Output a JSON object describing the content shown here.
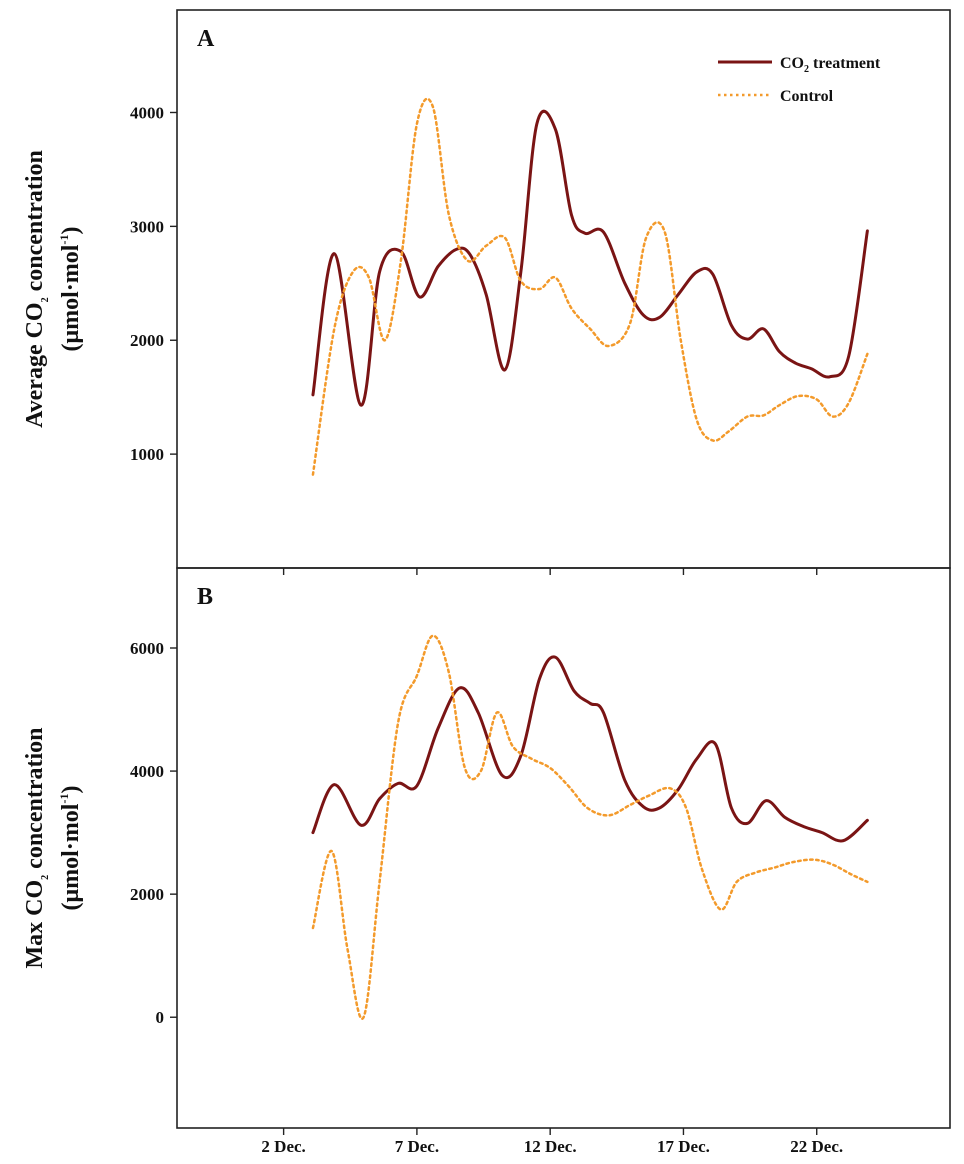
{
  "chart_data": {
    "type": "line",
    "x_tick_labels": [
      "2 Dec.",
      "7 Dec.",
      "12 Dec.",
      "17 Dec.",
      "22 Dec."
    ],
    "x_ticks": [
      2,
      7,
      12,
      17,
      22
    ],
    "x_range": [
      -2,
      27
    ],
    "legend": {
      "position": "top-right",
      "entries": [
        {
          "name": "CO",
          "sub": "2",
          "suffix": " treatment",
          "color": "#7a1414",
          "style": "solid"
        },
        {
          "name": "Control",
          "color": "#f39a2b",
          "style": "dotted"
        }
      ]
    },
    "panels": [
      {
        "label": "A",
        "ylabel": [
          "Average CO",
          "2",
          " concentration",
          "(μmol·mol",
          "-1",
          ")"
        ],
        "ylim": [
          0,
          4900
        ],
        "y_ticks": [
          1000,
          2000,
          3000,
          4000
        ],
        "y_tick_labels": [
          "1000",
          "2000",
          "3000",
          "4000"
        ],
        "series": [
          {
            "name": "CO2 treatment",
            "x": [
              3.1,
              3.9,
              4.9,
              5.6,
              6.4,
              7.1,
              7.8,
              8.5,
              9.0,
              9.6,
              10.3,
              10.9,
              11.5,
              12.2,
              12.8,
              13.3,
              14.0,
              14.8,
              15.5,
              16.1,
              16.8,
              17.5,
              18.1,
              18.8,
              19.4,
              20.0,
              20.6,
              21.2,
              21.8,
              22.5,
              23.2,
              23.9
            ],
            "y": [
              1520,
              2760,
              1430,
              2600,
              2780,
              2380,
              2650,
              2800,
              2750,
              2400,
              1740,
              2600,
              3900,
              3850,
              3100,
              2940,
              2950,
              2500,
              2220,
              2200,
              2400,
              2600,
              2580,
              2130,
              2010,
              2100,
              1900,
              1800,
              1750,
              1680,
              1860,
              2960
            ]
          },
          {
            "name": "Control",
            "x": [
              3.1,
              3.9,
              4.6,
              5.2,
              5.8,
              6.4,
              7.0,
              7.6,
              8.2,
              8.9,
              9.6,
              10.3,
              10.9,
              11.6,
              12.2,
              12.8,
              13.5,
              14.2,
              15.0,
              15.6,
              16.3,
              16.9,
              17.5,
              18.1,
              18.7,
              19.4,
              20.0,
              20.6,
              21.3,
              22.0,
              22.6,
              23.2,
              23.9
            ],
            "y": [
              820,
              2100,
              2600,
              2550,
              2000,
              2700,
              3900,
              4050,
              3100,
              2700,
              2830,
              2900,
              2520,
              2450,
              2550,
              2280,
              2100,
              1950,
              2150,
              2900,
              2950,
              2000,
              1300,
              1120,
              1200,
              1330,
              1340,
              1430,
              1510,
              1480,
              1330,
              1450,
              1880
            ]
          }
        ]
      },
      {
        "label": "B",
        "ylabel": [
          "Max CO",
          "2",
          " concentration",
          "(μmol·mol",
          "-1",
          ")"
        ],
        "ylim": [
          -1800,
          7300
        ],
        "y_ticks": [
          0,
          2000,
          4000,
          6000
        ],
        "y_tick_labels": [
          "0",
          "2000",
          "4000",
          "6000"
        ],
        "series": [
          {
            "name": "CO2 treatment",
            "x": [
              3.1,
              3.9,
              4.9,
              5.6,
              6.3,
              7.0,
              7.8,
              8.6,
              9.3,
              10.2,
              10.9,
              11.6,
              12.2,
              12.9,
              13.5,
              14.0,
              14.8,
              15.5,
              16.1,
              16.8,
              17.5,
              18.2,
              18.8,
              19.4,
              20.1,
              20.8,
              21.5,
              22.2,
              23.0,
              23.9
            ],
            "y": [
              3000,
              3780,
              3120,
              3550,
              3800,
              3760,
              4700,
              5350,
              4950,
              3930,
              4250,
              5500,
              5850,
              5300,
              5100,
              4950,
              3850,
              3420,
              3400,
              3700,
              4200,
              4440,
              3400,
              3150,
              3520,
              3250,
              3100,
              3000,
              2870,
              3200
            ]
          },
          {
            "name": "Control",
            "x": [
              3.1,
              3.8,
              4.4,
              5.0,
              5.6,
              6.3,
              7.0,
              7.6,
              8.2,
              8.8,
              9.4,
              10.0,
              10.6,
              11.3,
              12.0,
              12.7,
              13.4,
              14.2,
              15.0,
              15.7,
              16.5,
              17.1,
              17.7,
              18.4,
              19.0,
              19.7,
              20.4,
              21.1,
              21.9,
              22.6,
              23.3,
              23.9
            ],
            "y": [
              1450,
              2700,
              1100,
              0,
              2200,
              4800,
              5550,
              6200,
              5600,
              4050,
              4000,
              4950,
              4400,
              4200,
              4050,
              3750,
              3400,
              3280,
              3450,
              3600,
              3720,
              3400,
              2400,
              1750,
              2200,
              2350,
              2430,
              2520,
              2560,
              2480,
              2320,
              2200
            ]
          }
        ]
      }
    ]
  }
}
